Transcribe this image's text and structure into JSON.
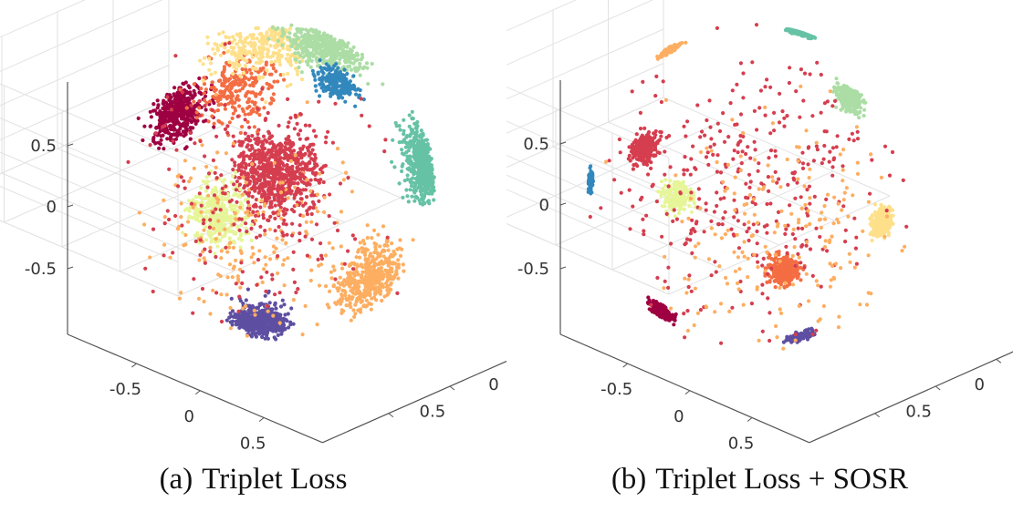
{
  "palette": {
    "dark_red": "#9e0142",
    "red": "#d53e4f",
    "orange": "#f46d43",
    "light_orange": "#fdae61",
    "pale_yellow": "#fee08b",
    "light_yellow_green": "#e6f598",
    "light_green": "#abdda4",
    "teal": "#66c2a5",
    "blue": "#3288bd",
    "purple": "#5e4fa2"
  },
  "chart_data": [
    {
      "type": "scatter",
      "subtype": "3d-scatter-on-unit-sphere",
      "caption_tag": "(a)",
      "caption_text": "Triplet Loss",
      "ticks": {
        "z": [
          "0.5",
          "0",
          "-0.5"
        ],
        "x": [
          "-0.5",
          "0",
          "0.5"
        ],
        "y": [
          "-0.5",
          "0",
          "0.5"
        ]
      },
      "zlim": [
        -1,
        1
      ],
      "xlim": [
        -1,
        1
      ],
      "ylim": [
        -1,
        1
      ],
      "grid": true,
      "clusters": [
        {
          "color": "#d53e4f",
          "center": [
            0.05,
            0.1,
            0.99
          ],
          "spread": 0.16,
          "count": 700
        },
        {
          "color": "#9e0142",
          "center": [
            -0.55,
            0.45,
            0.69
          ],
          "spread": 0.12,
          "count": 420
        },
        {
          "color": "#f46d43",
          "center": [
            -0.2,
            0.6,
            0.77
          ],
          "spread": 0.15,
          "count": 250
        },
        {
          "color": "#fee08b",
          "center": [
            -0.05,
            0.85,
            0.52
          ],
          "spread": 0.18,
          "count": 300
        },
        {
          "color": "#abdda4",
          "center": [
            0.35,
            0.85,
            0.4
          ],
          "spread": 0.16,
          "count": 450
        },
        {
          "color": "#3288bd",
          "center": [
            0.4,
            0.65,
            0.65
          ],
          "spread": 0.08,
          "count": 250
        },
        {
          "color": "#66c2a5",
          "center": [
            0.92,
            0.15,
            0.35
          ],
          "spread": 0.14,
          "count": 500
        },
        {
          "color": "#e6f598",
          "center": [
            -0.3,
            -0.15,
            0.94
          ],
          "spread": 0.12,
          "count": 350
        },
        {
          "color": "#fdae61",
          "center": [
            0.6,
            -0.55,
            0.58
          ],
          "spread": 0.16,
          "count": 450
        },
        {
          "color": "#5e4fa2",
          "center": [
            -0.05,
            -0.8,
            0.6
          ],
          "spread": 0.1,
          "count": 450
        },
        {
          "color": "#fdae61",
          "center": [
            -0.1,
            -0.3,
            0.94
          ],
          "spread": 0.35,
          "count": 200
        },
        {
          "color": "#d53e4f",
          "center": [
            -0.1,
            0.0,
            0.99
          ],
          "spread": 0.45,
          "count": 220
        }
      ]
    },
    {
      "type": "scatter",
      "subtype": "3d-scatter-on-unit-sphere",
      "caption_tag": "(b)",
      "caption_text": "Triplet Loss + SOSR",
      "ticks": {
        "z": [
          "0.5",
          "0",
          "-0.5"
        ],
        "x": [
          "-0.5",
          "0",
          "0.5"
        ],
        "y": [
          "-0.5",
          "0",
          "0.5"
        ]
      },
      "zlim": [
        -1,
        1
      ],
      "xlim": [
        -1,
        1
      ],
      "ylim": [
        -1,
        1
      ],
      "grid": true,
      "clusters": [
        {
          "color": "#abdda4",
          "center": [
            0.6,
            0.55,
            0.58
          ],
          "spread": 0.06,
          "count": 300
        },
        {
          "color": "#66c2a5",
          "center": [
            0.3,
            0.95,
            0.1
          ],
          "spread": 0.05,
          "count": 260
        },
        {
          "color": "#d53e4f",
          "center": [
            -0.65,
            0.25,
            0.72
          ],
          "spread": 0.06,
          "count": 300
        },
        {
          "color": "#e6f598",
          "center": [
            -0.45,
            -0.05,
            0.89
          ],
          "spread": 0.06,
          "count": 200
        },
        {
          "color": "#f46d43",
          "center": [
            0.2,
            -0.5,
            0.84
          ],
          "spread": 0.06,
          "count": 300
        },
        {
          "color": "#fee08b",
          "center": [
            0.8,
            -0.2,
            0.56
          ],
          "spread": 0.06,
          "count": 260
        },
        {
          "color": "#9e0142",
          "center": [
            -0.55,
            -0.75,
            0.37
          ],
          "spread": 0.05,
          "count": 280
        },
        {
          "color": "#5e4fa2",
          "center": [
            0.3,
            -0.9,
            0.3
          ],
          "spread": 0.05,
          "count": 150
        },
        {
          "color": "#3288bd",
          "center": [
            -0.98,
            0.05,
            0.2
          ],
          "spread": 0.04,
          "count": 90
        },
        {
          "color": "#fdae61",
          "center": [
            -0.5,
            0.85,
            0.2
          ],
          "spread": 0.05,
          "count": 120
        },
        {
          "color": "#d53e4f",
          "center": [
            0.0,
            0.0,
            0.99
          ],
          "spread": 0.55,
          "count": 350
        },
        {
          "color": "#fdae61",
          "center": [
            0.2,
            -0.3,
            0.93
          ],
          "spread": 0.5,
          "count": 200
        }
      ]
    }
  ]
}
